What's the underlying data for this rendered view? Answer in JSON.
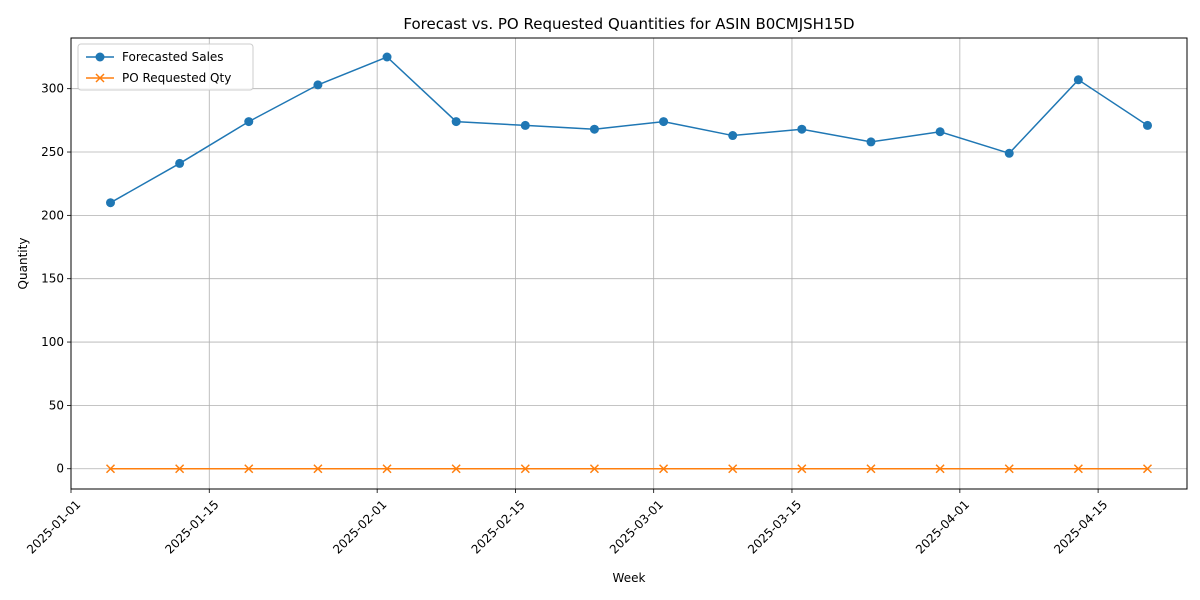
{
  "chart_data": {
    "type": "line",
    "title": "Forecast vs. PO Requested Quantities for ASIN B0CMJSH15D",
    "xlabel": "Week",
    "ylabel": "Quantity",
    "x": [
      "2025-01-05",
      "2025-01-12",
      "2025-01-19",
      "2025-01-26",
      "2025-02-02",
      "2025-02-09",
      "2025-02-16",
      "2025-02-23",
      "2025-03-02",
      "2025-03-09",
      "2025-03-16",
      "2025-03-23",
      "2025-03-30",
      "2025-04-06",
      "2025-04-13",
      "2025-04-20"
    ],
    "series": [
      {
        "name": "Forecasted Sales",
        "color": "#1f77b4",
        "marker": "circle",
        "values": [
          210,
          241,
          274,
          303,
          325,
          274,
          271,
          268,
          274,
          263,
          268,
          258,
          266,
          249,
          307,
          271
        ]
      },
      {
        "name": "PO Requested Qty",
        "color": "#ff7f0e",
        "marker": "x",
        "values": [
          0,
          0,
          0,
          0,
          0,
          0,
          0,
          0,
          0,
          0,
          0,
          0,
          0,
          0,
          0,
          0
        ]
      }
    ],
    "xlim": [
      "2025-01-01",
      "2025-04-24"
    ],
    "ylim": [
      -16,
      340
    ],
    "xticks": [
      "2025-01-01",
      "2025-01-15",
      "2025-02-01",
      "2025-02-15",
      "2025-03-01",
      "2025-03-15",
      "2025-04-01",
      "2025-04-15"
    ],
    "yticks": [
      0,
      50,
      100,
      150,
      200,
      250,
      300
    ],
    "grid": true,
    "legend_position": "upper-left"
  }
}
